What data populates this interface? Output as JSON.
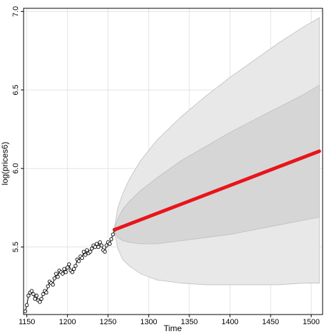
{
  "chart_data": {
    "type": "line",
    "title": "",
    "xlabel": "Time",
    "ylabel": "log(prices6)",
    "xlim": [
      1146,
      1514
    ],
    "ylim": [
      5.07,
      7.02
    ],
    "x_ticks": [
      1150,
      1200,
      1250,
      1300,
      1350,
      1400,
      1450,
      1500
    ],
    "y_ticks": [
      5.5,
      6.0,
      6.5,
      7.0
    ],
    "x_tick_labels": [
      "1150",
      "1200",
      "1250",
      "1300",
      "1350",
      "1400",
      "1450",
      "1500"
    ],
    "y_tick_labels": [
      "5.5",
      "6.0",
      "6.5",
      "7.0"
    ],
    "grid": true,
    "colors": {
      "observed": "#000000",
      "forecast": "#e8151b",
      "band_outer": "#e8e8e8",
      "band_inner": "#d6d6d6",
      "band_edge": "#bdbdbd",
      "grid": "#e3e3e3",
      "axis": "#000000"
    },
    "observed": {
      "x": [
        1148,
        1150,
        1152,
        1154,
        1156,
        1158,
        1160,
        1162,
        1164,
        1166,
        1168,
        1170,
        1172,
        1174,
        1176,
        1178,
        1180,
        1182,
        1184,
        1186,
        1188,
        1190,
        1192,
        1194,
        1196,
        1198,
        1200,
        1202,
        1204,
        1206,
        1208,
        1210,
        1212,
        1214,
        1216,
        1218,
        1220,
        1222,
        1224,
        1226,
        1228,
        1230,
        1232,
        1234,
        1236,
        1238,
        1240,
        1242,
        1244,
        1246,
        1248,
        1250,
        1252,
        1254,
        1256,
        1258
      ],
      "y": [
        5.09,
        5.13,
        5.19,
        5.21,
        5.22,
        5.2,
        5.17,
        5.19,
        5.16,
        5.15,
        5.17,
        5.2,
        5.22,
        5.21,
        5.25,
        5.28,
        5.27,
        5.26,
        5.3,
        5.33,
        5.31,
        5.35,
        5.34,
        5.33,
        5.36,
        5.34,
        5.37,
        5.39,
        5.35,
        5.34,
        5.36,
        5.38,
        5.42,
        5.41,
        5.44,
        5.43,
        5.47,
        5.45,
        5.48,
        5.46,
        5.47,
        5.49,
        5.51,
        5.5,
        5.52,
        5.5,
        5.53,
        5.51,
        5.48,
        5.47,
        5.51,
        5.53,
        5.52,
        5.55,
        5.58,
        5.61
      ]
    },
    "forecast": {
      "x": [
        1258,
        1510
      ],
      "y": [
        5.61,
        6.11
      ]
    },
    "bands": {
      "x": [
        1258,
        1262,
        1268,
        1276,
        1290,
        1310,
        1340,
        1370,
        1400,
        1430,
        1460,
        1490,
        1510
      ],
      "inner_upper": [
        5.62,
        5.68,
        5.74,
        5.79,
        5.86,
        5.94,
        6.05,
        6.14,
        6.23,
        6.31,
        6.39,
        6.47,
        6.53
      ],
      "inner_lower": [
        5.6,
        5.56,
        5.54,
        5.53,
        5.52,
        5.52,
        5.54,
        5.56,
        5.58,
        5.61,
        5.64,
        5.67,
        5.69
      ],
      "outer_upper": [
        5.63,
        5.75,
        5.84,
        5.93,
        6.05,
        6.18,
        6.33,
        6.46,
        6.58,
        6.69,
        6.8,
        6.9,
        6.96
      ],
      "outer_lower": [
        5.59,
        5.49,
        5.42,
        5.38,
        5.33,
        5.29,
        5.27,
        5.26,
        5.26,
        5.26,
        5.26,
        5.27,
        5.27
      ]
    }
  }
}
